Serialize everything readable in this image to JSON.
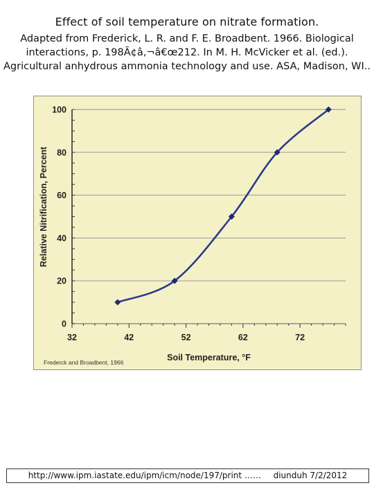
{
  "header": {
    "title": "Effect of soil temperature on nitrate formation.",
    "citation_lines": [
      "Adapted from Frederick, L. R. and F. E. Broadbent. 1966. Biological",
      "interactions, p. 198Ã¢â‚¬â€œ212. In M. H. McVicker et al. (ed.).",
      "Agricultural anhydrous ammonia technology and use. ASA, Madison, WI.."
    ]
  },
  "chart_data": {
    "type": "line",
    "title": "",
    "xlabel": "Soil Temperature, °F",
    "ylabel": "Relative Nitrification, Percent",
    "x_ticks": [
      "32",
      "42",
      "52",
      "62",
      "72"
    ],
    "y_ticks": [
      "0",
      "20",
      "40",
      "60",
      "80",
      "100"
    ],
    "xlim": [
      32,
      80
    ],
    "ylim": [
      0,
      100
    ],
    "grid": true,
    "series": [
      {
        "x": [
          40,
          50,
          60,
          68,
          77
        ],
        "y": [
          10,
          20,
          50,
          80,
          100
        ]
      }
    ],
    "annotation": "Frederck and Broadbent, 1966",
    "colors": {
      "line": "#2b3a8c",
      "marker": "#1f2a70",
      "background": "#f5f1c7",
      "grid": "#8d8d8d"
    }
  },
  "footer": {
    "url": "http://www.ipm.iastate.edu/ipm/icm/node/197/print",
    "ellipsis": "……",
    "credit": "diunduh 7/2/2012"
  }
}
